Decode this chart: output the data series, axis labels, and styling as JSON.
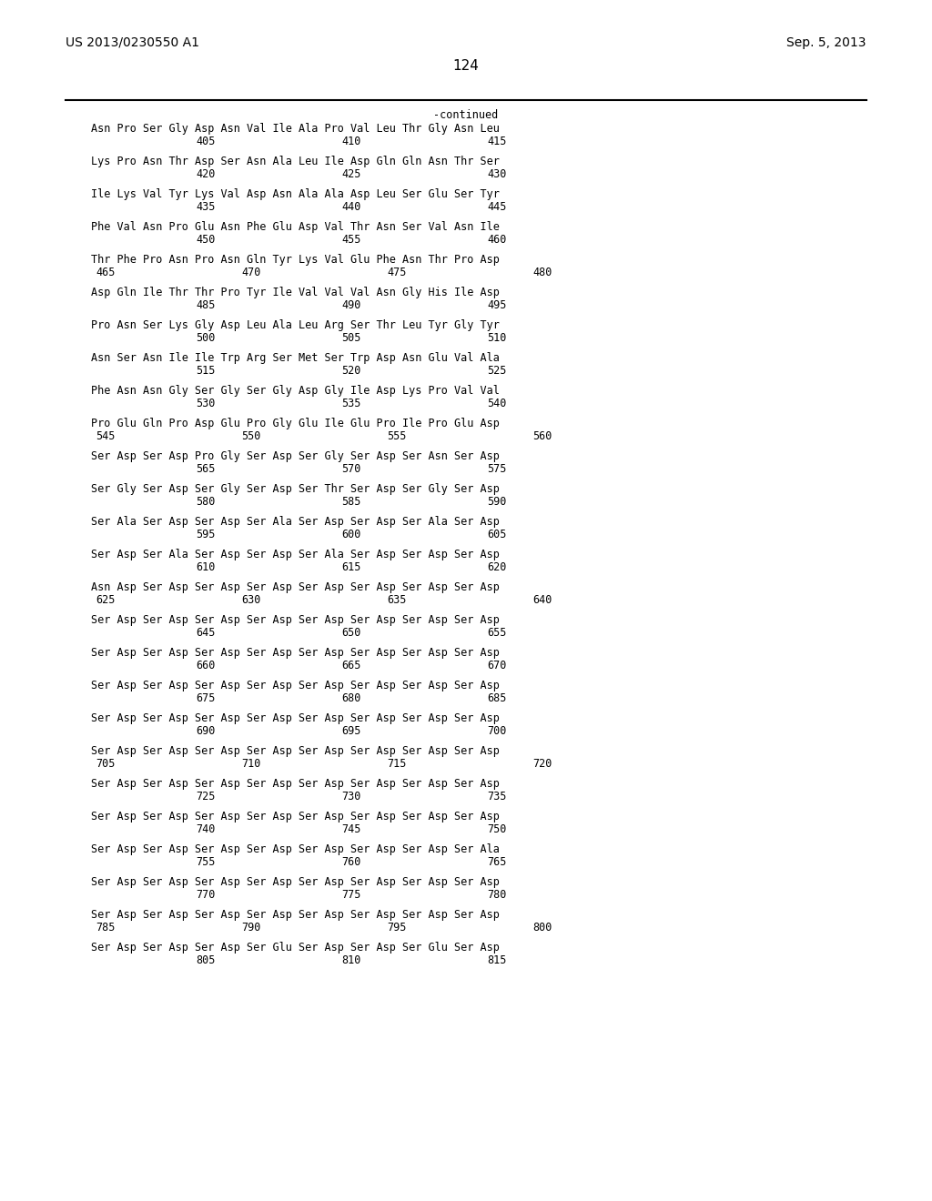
{
  "header_left": "US 2013/0230550 A1",
  "header_right": "Sep. 5, 2013",
  "page_number": "124",
  "continued_label": "-continued",
  "background_color": "#ffffff",
  "text_color": "#000000",
  "font_size": 8.5,
  "header_font_size": 10,
  "page_num_font_size": 11,
  "lines": [
    [
      "Asn Pro Ser Gly Asp Asn Val Ile Ala Pro Val Leu Thr Gly Asn Leu",
      "405",
      "410",
      "415"
    ],
    [
      "Lys Pro Asn Thr Asp Ser Asn Ala Leu Ile Asp Gln Gln Asn Thr Ser",
      "420",
      "425",
      "430"
    ],
    [
      "Ile Lys Val Tyr Lys Val Asp Asn Ala Ala Asp Leu Ser Glu Ser Tyr",
      "435",
      "440",
      "445"
    ],
    [
      "Phe Val Asn Pro Glu Asn Phe Glu Asp Val Thr Asn Ser Val Asn Ile",
      "450",
      "455",
      "460"
    ],
    [
      "Thr Phe Pro Asn Pro Asn Gln Tyr Lys Val Glu Phe Asn Thr Pro Asp",
      "465",
      "470",
      "475",
      "480"
    ],
    [
      "Asp Gln Ile Thr Thr Pro Tyr Ile Val Val Val Asn Gly His Ile Asp",
      "485",
      "490",
      "495"
    ],
    [
      "Pro Asn Ser Lys Gly Asp Leu Ala Leu Arg Ser Thr Leu Tyr Gly Tyr",
      "500",
      "505",
      "510"
    ],
    [
      "Asn Ser Asn Ile Ile Trp Arg Ser Met Ser Trp Asp Asn Glu Val Ala",
      "515",
      "520",
      "525"
    ],
    [
      "Phe Asn Asn Gly Ser Gly Ser Gly Asp Gly Ile Asp Lys Pro Val Val",
      "530",
      "535",
      "540"
    ],
    [
      "Pro Glu Gln Pro Asp Glu Pro Glu Gly Ile Glu Pro Ile Pro Glu Asp",
      "545",
      "550",
      "555",
      "560"
    ],
    [
      "Ser Asp Ser Asp Pro Gly Ser Asp Ser Gly Ser Asp Ser Asn Ser Asp",
      "565",
      "570",
      "575"
    ],
    [
      "Ser Gly Ser Asp Ser Gly Ser Asp Ser Thr Ser Asp Ser Gly Ser Asp",
      "580",
      "585",
      "590"
    ],
    [
      "Ser Ala Ser Asp Ser Asp Ser Ala Ser Asp Ser Asp Ser Ala Ser Asp",
      "595",
      "600",
      "605"
    ],
    [
      "Ser Asp Ser Ala Ser Asp Ser Asp Ser Ala Ser Asp Ser Asp Ser Asp",
      "610",
      "615",
      "620"
    ],
    [
      "Asn Asp Ser Asp Ser Asp Ser Asp Ser Asp Ser Asp Ser Asp Ser Asp",
      "625",
      "630",
      "635",
      "640"
    ],
    [
      "Ser Asp Ser Asp Ser Asp Ser Asp Ser Asp Ser Asp Ser Asp Ser Asp",
      "645",
      "650",
      "655"
    ],
    [
      "Ser Asp Ser Asp Ser Asp Ser Asp Ser Asp Ser Asp Ser Asp Ser Asp",
      "660",
      "665",
      "670"
    ],
    [
      "Ser Asp Ser Asp Ser Asp Ser Asp Ser Asp Ser Asp Ser Asp Ser Asp",
      "675",
      "680",
      "685"
    ],
    [
      "Ser Asp Ser Asp Ser Asp Ser Asp Ser Asp Ser Asp Ser Asp Ser Asp",
      "690",
      "695",
      "700"
    ],
    [
      "Ser Asp Ser Asp Ser Asp Ser Asp Ser Asp Ser Asp Ser Asp Ser Asp",
      "705",
      "710",
      "715",
      "720"
    ],
    [
      "Ser Asp Ser Asp Ser Asp Ser Asp Ser Asp Ser Asp Ser Asp Ser Asp",
      "725",
      "730",
      "735"
    ],
    [
      "Ser Asp Ser Asp Ser Asp Ser Asp Ser Asp Ser Asp Ser Asp Ser Asp",
      "740",
      "745",
      "750"
    ],
    [
      "Ser Asp Ser Asp Ser Asp Ser Asp Ser Asp Ser Asp Ser Asp Ser Ala",
      "755",
      "760",
      "765"
    ],
    [
      "Ser Asp Ser Asp Ser Asp Ser Asp Ser Asp Ser Asp Ser Asp Ser Asp",
      "770",
      "775",
      "780"
    ],
    [
      "Ser Asp Ser Asp Ser Asp Ser Asp Ser Asp Ser Asp Ser Asp Ser Asp",
      "785",
      "790",
      "795",
      "800"
    ],
    [
      "Ser Asp Ser Asp Ser Asp Ser Glu Ser Asp Ser Asp Ser Glu Ser Asp",
      "805",
      "810",
      "815"
    ]
  ],
  "num_offsets": {
    "4": [
      true,
      true,
      true,
      true
    ],
    "10": [
      true,
      true,
      true,
      true
    ],
    "15": [
      true,
      true,
      true,
      true
    ],
    "20": [
      true,
      true,
      true,
      true
    ],
    "25": [
      true,
      true,
      true,
      true
    ]
  }
}
